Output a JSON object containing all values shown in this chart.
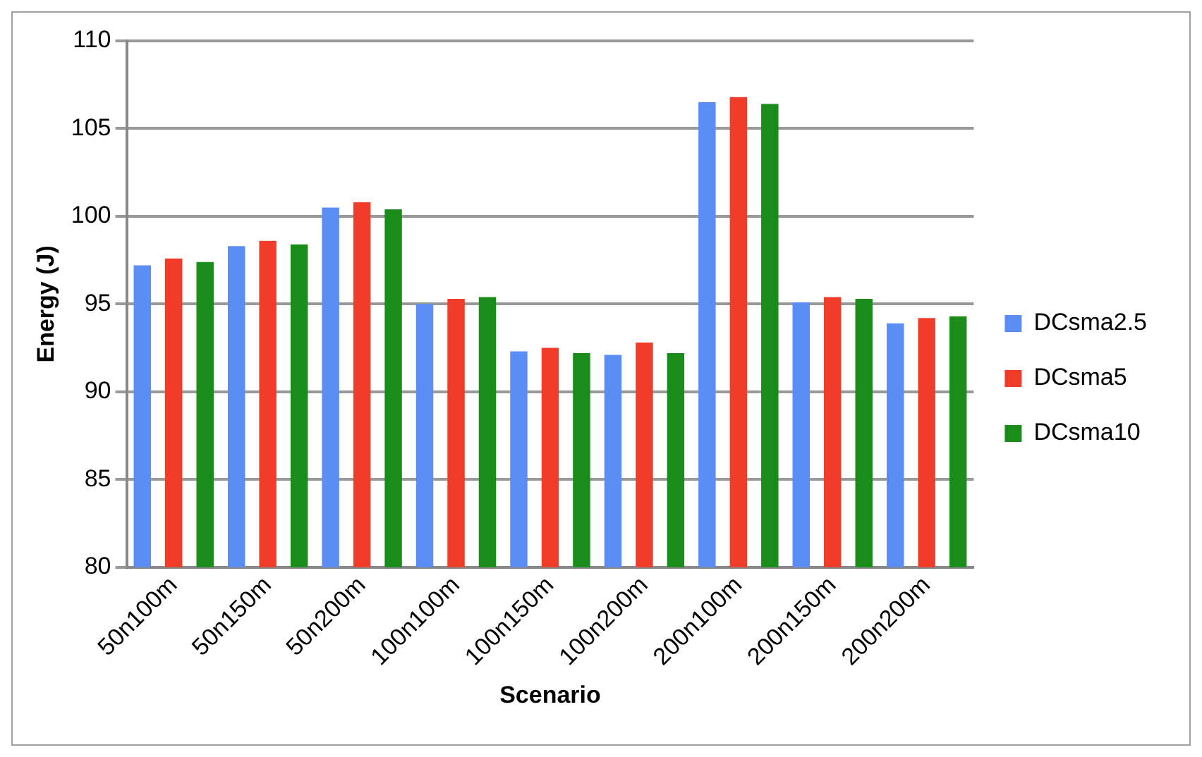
{
  "chart_data": {
    "type": "bar",
    "xlabel": "Scenario",
    "ylabel": "Energy (J)",
    "categories": [
      "50n100m",
      "50n150m",
      "50n200m",
      "100n100m",
      "100n150m",
      "100n200m",
      "200n100m",
      "200n150m",
      "200n200m"
    ],
    "series": [
      {
        "name": "DCsma2.5",
        "color": "#5b8ef5",
        "values": [
          97.2,
          98.3,
          100.5,
          95.0,
          92.3,
          92.1,
          106.5,
          95.1,
          93.9
        ]
      },
      {
        "name": "DCsma5",
        "color": "#f03c28",
        "values": [
          97.6,
          98.6,
          100.8,
          95.3,
          92.5,
          92.8,
          106.8,
          95.4,
          94.2
        ]
      },
      {
        "name": "DCsma10",
        "color": "#1a8c1a",
        "values": [
          97.4,
          98.4,
          100.4,
          95.4,
          92.2,
          92.2,
          106.4,
          95.3,
          94.3
        ]
      }
    ],
    "ylim": [
      80,
      110
    ],
    "yticks": [
      80,
      85,
      90,
      95,
      100,
      105,
      110
    ],
    "grid": "y",
    "legend": "right"
  }
}
